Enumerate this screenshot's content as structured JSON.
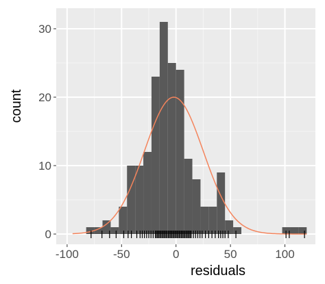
{
  "chart_data": {
    "type": "bar",
    "subtype": "histogram",
    "xlabel": "residuals",
    "ylabel": "count",
    "xlim": [
      -110,
      128
    ],
    "ylim": [
      -1.5,
      33
    ],
    "x_ticks": [
      -100,
      -50,
      0,
      50,
      100
    ],
    "y_ticks": [
      0,
      10,
      20,
      30
    ],
    "bin_width": 7.5,
    "bins": [
      {
        "x0": -82.5,
        "x1": -75,
        "count": 1
      },
      {
        "x0": -75,
        "x1": -67.5,
        "count": 1
      },
      {
        "x0": -67.5,
        "x1": -60,
        "count": 2
      },
      {
        "x0": -60,
        "x1": -52.5,
        "count": 1
      },
      {
        "x0": -52.5,
        "x1": -45,
        "count": 4
      },
      {
        "x0": -45,
        "x1": -37.5,
        "count": 10
      },
      {
        "x0": -37.5,
        "x1": -30,
        "count": 10
      },
      {
        "x0": -30,
        "x1": -22.5,
        "count": 12
      },
      {
        "x0": -22.5,
        "x1": -15,
        "count": 23
      },
      {
        "x0": -15,
        "x1": -7.5,
        "count": 31
      },
      {
        "x0": -7.5,
        "x1": 0,
        "count": 25
      },
      {
        "x0": 0,
        "x1": 7.5,
        "count": 24
      },
      {
        "x0": 7.5,
        "x1": 15,
        "count": 11
      },
      {
        "x0": 15,
        "x1": 22.5,
        "count": 8
      },
      {
        "x0": 22.5,
        "x1": 30,
        "count": 4
      },
      {
        "x0": 30,
        "x1": 37.5,
        "count": 4
      },
      {
        "x0": 37.5,
        "x1": 45,
        "count": 9
      },
      {
        "x0": 45,
        "x1": 52.5,
        "count": 2
      },
      {
        "x0": 52.5,
        "x1": 60,
        "count": 1
      },
      {
        "x0": 97.5,
        "x1": 105,
        "count": 1
      },
      {
        "x0": 105,
        "x1": 112.5,
        "count": 1
      },
      {
        "x0": 112.5,
        "x1": 120,
        "count": 1
      }
    ],
    "normal_curve": {
      "mean": -2,
      "sd": 27,
      "peak": 20,
      "x_range": [
        -95,
        120
      ]
    },
    "rug": [
      -78,
      -68,
      -61,
      -55,
      -48,
      -44,
      -41,
      -36,
      -33,
      -31,
      -29,
      -27,
      -25,
      -23,
      -21,
      -19,
      -18,
      -17,
      -16,
      -15,
      -14,
      -13,
      -12,
      -11,
      -10,
      -9,
      -8,
      -7,
      -6,
      -5,
      -4,
      -3,
      -2,
      -1,
      0,
      1,
      2,
      3,
      4,
      5,
      6,
      7,
      8,
      9,
      10,
      11,
      12,
      13,
      14,
      16,
      18,
      20,
      22,
      24,
      27,
      30,
      33,
      36,
      39,
      41,
      43,
      45,
      48,
      55,
      101,
      104,
      118
    ],
    "grid": true,
    "colors": {
      "panel": "#ebebeb",
      "grid_major": "#ffffff",
      "grid_minor": "#f4f4f4",
      "bar": "#595959",
      "curve": "#f4845c",
      "rug": "#000000"
    }
  }
}
